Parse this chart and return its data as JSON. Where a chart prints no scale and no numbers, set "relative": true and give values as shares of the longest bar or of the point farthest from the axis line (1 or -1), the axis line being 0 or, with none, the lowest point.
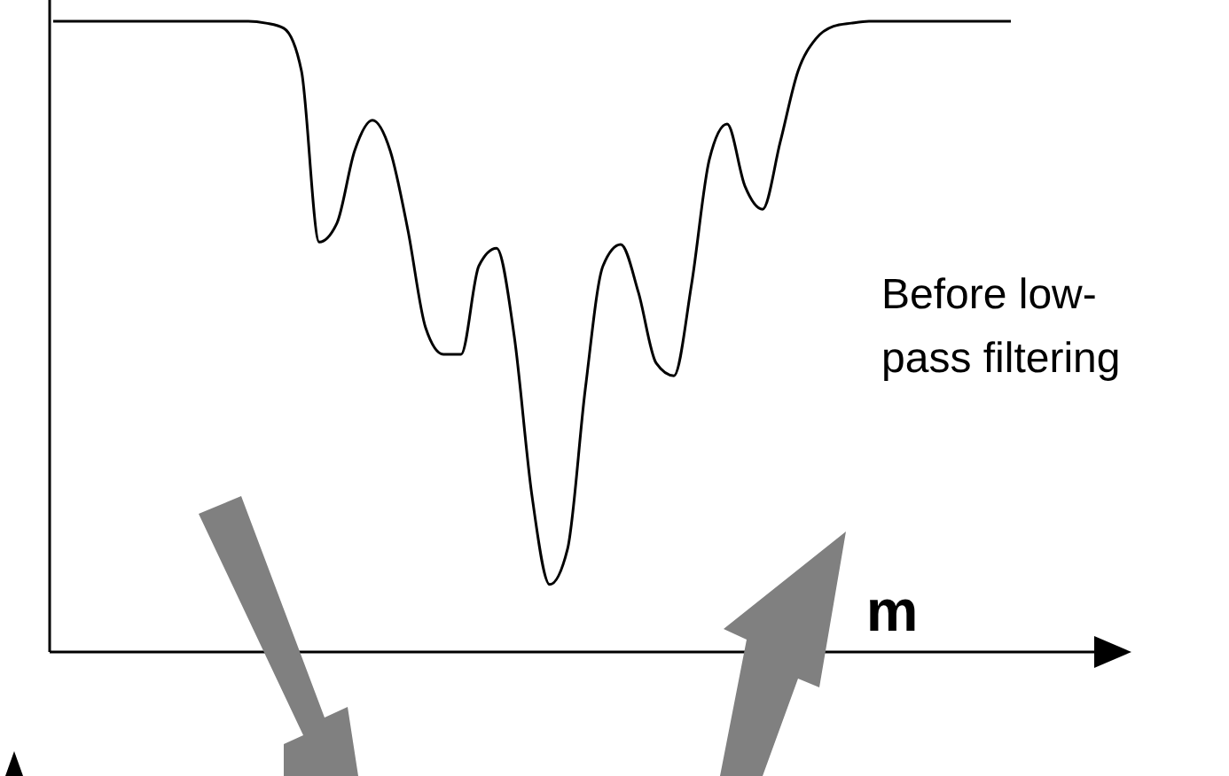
{
  "chart_data": {
    "type": "line",
    "relative": true,
    "xlabel": "m",
    "annotations": [
      "Before low-pass filtering"
    ],
    "color": "#000000",
    "marker": "none",
    "line_style": "solid",
    "categories": [
      null,
      null,
      null,
      null,
      null,
      null,
      null,
      null,
      null,
      null,
      null,
      null,
      null,
      null,
      null,
      null,
      null,
      null,
      null,
      null,
      null,
      null,
      null,
      null,
      null,
      null,
      null,
      null,
      null,
      null,
      null,
      null,
      null,
      null,
      null,
      null,
      null,
      null,
      null,
      null,
      null,
      null,
      null,
      null,
      null,
      null,
      null,
      null,
      null,
      null,
      null,
      null,
      null,
      null,
      null
    ],
    "values": [
      1,
      1,
      1,
      1,
      1,
      1,
      1,
      1,
      1,
      1,
      1,
      1,
      0.997,
      0.989,
      0.921,
      0.65,
      0.68,
      0.795,
      0.843,
      0.795,
      0.669,
      0.514,
      0.472,
      0.472,
      0.612,
      0.64,
      0.5,
      0.247,
      0.107,
      0.163,
      0.416,
      0.612,
      0.646,
      0.57,
      0.458,
      0.438,
      0.584,
      0.781,
      0.837,
      0.739,
      0.702,
      0.809,
      0.921,
      0.972,
      0.992,
      0.997,
      1,
      1,
      1,
      1,
      1,
      1,
      1,
      1,
      1
    ]
  }
}
